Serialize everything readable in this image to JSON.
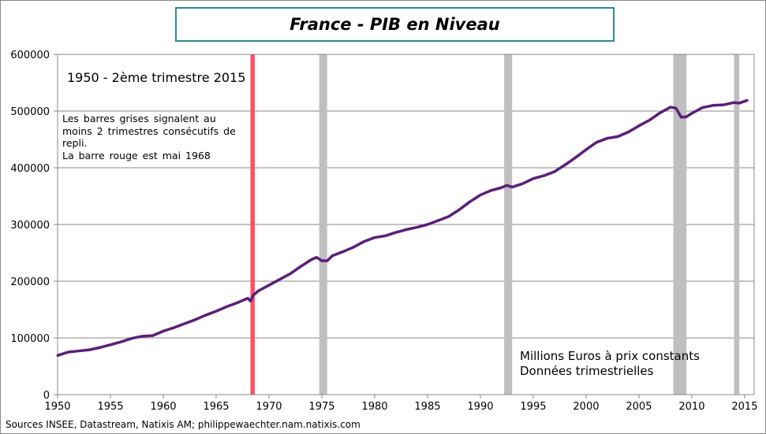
{
  "chart_data": {
    "type": "line",
    "title": "France - PIB en Niveau",
    "xlabel": "",
    "ylabel": "",
    "xlim": [
      1950,
      2015.9
    ],
    "ylim": [
      0,
      600000
    ],
    "grid": true,
    "x_ticks": [
      "1950",
      "1955",
      "1960",
      "1965",
      "1970",
      "1975",
      "1980",
      "1985",
      "1990",
      "1995",
      "2000",
      "2005",
      "2010",
      "2015"
    ],
    "y_ticks": [
      "0",
      "100000",
      "200000",
      "300000",
      "400000",
      "500000",
      "600000"
    ],
    "line_color": "#5b1f78",
    "series": [
      {
        "x": [
          1950,
          1951,
          1952,
          1953,
          1954,
          1955,
          1956,
          1957,
          1958,
          1959,
          1960,
          1961,
          1962,
          1963,
          1964,
          1965,
          1966,
          1967,
          1968,
          1968.25,
          1968.5,
          1969,
          1970,
          1971,
          1972,
          1973,
          1974,
          1974.5,
          1975,
          1975.5,
          1976,
          1977,
          1978,
          1979,
          1980,
          1981,
          1982,
          1983,
          1984,
          1985,
          1986,
          1987,
          1988,
          1989,
          1990,
          1991,
          1992,
          1992.5,
          1993,
          1994,
          1995,
          1996,
          1997,
          1998,
          1999,
          2000,
          2001,
          2002,
          2003,
          2004,
          2005,
          2006,
          2007,
          2008,
          2008.5,
          2009,
          2009.5,
          2010,
          2011,
          2012,
          2013,
          2014,
          2014.5,
          2015.25
        ],
        "values": [
          69000,
          75000,
          77000,
          79000,
          83000,
          88000,
          93000,
          99000,
          103000,
          104000,
          112000,
          118000,
          125000,
          132000,
          140000,
          147000,
          155000,
          162000,
          170000,
          165000,
          175000,
          183000,
          193000,
          203000,
          213000,
          226000,
          238000,
          242000,
          236000,
          236000,
          245000,
          252000,
          260000,
          270000,
          277000,
          280000,
          286000,
          291000,
          295000,
          300000,
          307000,
          314000,
          326000,
          340000,
          352000,
          360000,
          365000,
          369000,
          366000,
          372000,
          381000,
          386000,
          393000,
          405000,
          418000,
          432000,
          445000,
          452000,
          455000,
          463000,
          474000,
          484000,
          497000,
          507000,
          505000,
          489000,
          490000,
          496000,
          506000,
          510000,
          511000,
          515000,
          514000,
          519000
        ]
      }
    ],
    "shaded_periods": {
      "grey_color": "#bfbfbf",
      "grey": [
        [
          1974.75,
          1975.5
        ],
        [
          1992.25,
          1993.0
        ],
        [
          2008.25,
          2009.5
        ],
        [
          2014.0,
          2014.5
        ]
      ],
      "red_color": "#ff4d62",
      "red": [
        [
          1968.25,
          1968.65
        ]
      ]
    },
    "annotations": {
      "period": "1950 - 2ème trimestre 2015",
      "note_lines": [
        "Les barres grises signalent  au",
        "moins  2 trimestres  consécutifs de",
        "repli.",
        "La barre rouge  est mai  1968"
      ],
      "unit_lines": [
        "Millions  Euros à prix constants",
        "Données trimestrielles"
      ]
    },
    "source": "Sources INSEE, Datastream, Natixis AM; philippewaechter.nam.natixis.com"
  }
}
